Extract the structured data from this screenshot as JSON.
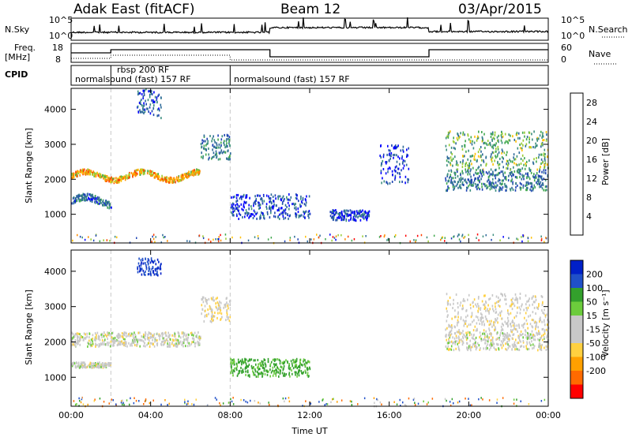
{
  "header": {
    "radar": "Adak East (fitACF)",
    "beam": "Beam 12",
    "date": "03/Apr/2015"
  },
  "strip": {
    "nsky_label": "N.Sky",
    "nsky_ticks": [
      "10^5",
      "10^0"
    ],
    "nsearch_label": "N.Search",
    "nsearch_ticks": [
      "10^5",
      "10^0"
    ],
    "freq_label": "Freq.",
    "freq_unit": "[MHz]",
    "freq_ticks": [
      "18",
      "8"
    ],
    "nave_label": "Nave",
    "nave_ticks": [
      "60",
      "0"
    ],
    "cpid_label": "CPID",
    "cpid_segments": [
      {
        "text": "normalsound (fast) 157 RF",
        "t0": 0.0,
        "t1": 2.0
      },
      {
        "text": "rbsp 200 RF",
        "t0": 2.0,
        "t1": 8.0
      },
      {
        "text": "normalsound (fast) 157 RF",
        "t0": 8.0,
        "t1": 24.0
      }
    ]
  },
  "colors": {
    "power_scale": [
      "#0000ff",
      "#1f44b4",
      "#2e6a9a",
      "#3d8f80",
      "#41a84e",
      "#99cc33",
      "#ffc000",
      "#ff8c00",
      "#ff4000",
      "#ff0000"
    ],
    "velocity_scale": [
      "#ff0000",
      "#ff6a00",
      "#ffa000",
      "#ffd040",
      "#c8c8c8",
      "#c8c8c8",
      "#6ccc3c",
      "#33a02c",
      "#2050c8",
      "#0020c8"
    ]
  },
  "chart_data": [
    {
      "type": "heatmap",
      "name": "power",
      "ylabel": "Slant Range [km]",
      "yticks": [
        "1000",
        "2000",
        "3000",
        "4000"
      ],
      "ylim": [
        180,
        4600
      ],
      "xlim": [
        0,
        24
      ],
      "colorbar_label": "Power [dB]",
      "colorbar_ticks": [
        "4",
        "8",
        "12",
        "16",
        "20",
        "24",
        "28"
      ],
      "clim": [
        0,
        30
      ],
      "bands": [
        {
          "t0": 0.0,
          "t1": 6.5,
          "range": [
            2050,
            2200
          ],
          "value": 20
        },
        {
          "t0": 6.5,
          "t1": 8.0,
          "range": [
            2600,
            3300
          ],
          "value": 9
        },
        {
          "t0": 0.0,
          "t1": 2.0,
          "range": [
            1300,
            1500
          ],
          "value": 8
        },
        {
          "t0": 3.3,
          "t1": 4.5,
          "range": [
            3800,
            4500
          ],
          "value": 6
        },
        {
          "t0": 8.0,
          "t1": 12.0,
          "range": [
            900,
            1600
          ],
          "value": 5
        },
        {
          "t0": 13.0,
          "t1": 15.0,
          "range": [
            850,
            1150
          ],
          "value": 4
        },
        {
          "t0": 15.5,
          "t1": 17.0,
          "range": [
            1900,
            3000
          ],
          "value": 4
        },
        {
          "t0": 18.8,
          "t1": 24.0,
          "range": [
            2300,
            3400
          ],
          "value": 13
        },
        {
          "t0": 18.8,
          "t1": 24.0,
          "range": [
            1700,
            2300
          ],
          "value": 9
        }
      ]
    },
    {
      "type": "heatmap",
      "name": "velocity",
      "ylabel": "Slant Range [km]",
      "yticks": [
        "1000",
        "2000",
        "3000",
        "4000"
      ],
      "ylim": [
        180,
        4600
      ],
      "xlim": [
        0,
        24
      ],
      "xlabel": "Time UT",
      "xticks": [
        "00:00",
        "04:00",
        "08:00",
        "12:00",
        "16:00",
        "20:00",
        "00:00"
      ],
      "colorbar_label": "Velocity [m s⁻¹]",
      "colorbar_ticks": [
        "200",
        "100",
        "50",
        "15",
        "-15",
        "-50",
        "-100",
        "-200"
      ],
      "clim": [
        -250,
        250
      ],
      "bands": [
        {
          "t0": 0.0,
          "t1": 6.5,
          "range": [
            1900,
            2300
          ],
          "value": 0
        },
        {
          "t0": 6.5,
          "t1": 8.0,
          "range": [
            2600,
            3300
          ],
          "value": -10
        },
        {
          "t0": 0.0,
          "t1": 2.0,
          "range": [
            1300,
            1450
          ],
          "value": 0
        },
        {
          "t0": 3.3,
          "t1": 4.5,
          "range": [
            3900,
            4400
          ],
          "value": 200
        },
        {
          "t0": 8.0,
          "t1": 12.0,
          "range": [
            1050,
            1550
          ],
          "value": 60
        },
        {
          "t0": 18.8,
          "t1": 24.0,
          "range": [
            2300,
            3400
          ],
          "value": -5
        },
        {
          "t0": 18.8,
          "t1": 24.0,
          "range": [
            1800,
            2300
          ],
          "value": 0
        }
      ]
    }
  ]
}
